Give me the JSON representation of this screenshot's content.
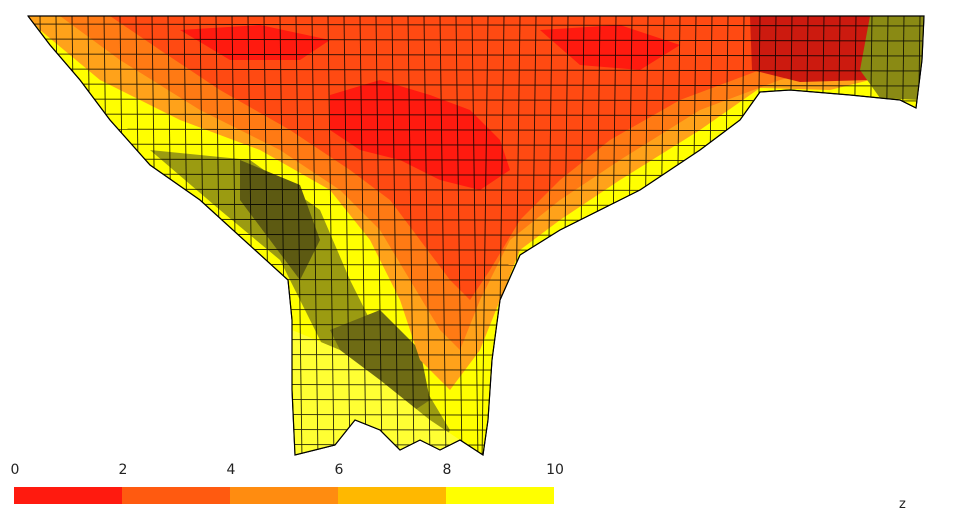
{
  "colorbar": {
    "ticks": [
      "0",
      "2",
      "4",
      "6",
      "8",
      "10"
    ],
    "segments": [
      {
        "from": 0,
        "to": 2,
        "color": "#ff1a0f"
      },
      {
        "from": 2,
        "to": 4,
        "color": "#ff5a10"
      },
      {
        "from": 4,
        "to": 6,
        "color": "#ff8c10"
      },
      {
        "from": 6,
        "to": 8,
        "color": "#ffb800"
      },
      {
        "from": 8,
        "to": 10,
        "color": "#ffff00"
      }
    ]
  },
  "axis": {
    "letter": "z"
  },
  "palette": {
    "red": "#ff1a0f",
    "red_orange": "#ff4a12",
    "orange": "#ff7a14",
    "light_orange": "#ffa21a",
    "yellow": "#ffff00",
    "olive": "#8a8a14",
    "dark_olive": "#5d5a12",
    "mesh_line": "#000000"
  }
}
